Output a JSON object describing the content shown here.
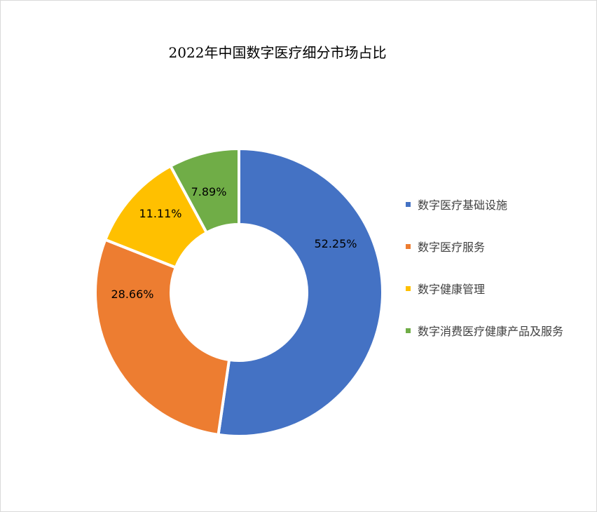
{
  "chart_data": {
    "type": "pie",
    "variant": "donut",
    "title": "2022年中国数字医疗细分市场占比",
    "categories": [
      "数字医疗基础设施",
      "数字医疗服务",
      "数字健康管理",
      "数字消费医疗健康产品及服务"
    ],
    "values": [
      52.25,
      28.66,
      11.11,
      7.89
    ],
    "data_labels": [
      "52.25%",
      "28.66%",
      "11.11%",
      "7.89%"
    ],
    "colors": [
      "#4472C4",
      "#ED7D31",
      "#FFC000",
      "#70AD47"
    ],
    "legend_position": "right",
    "start_angle": "top, clockwise"
  }
}
